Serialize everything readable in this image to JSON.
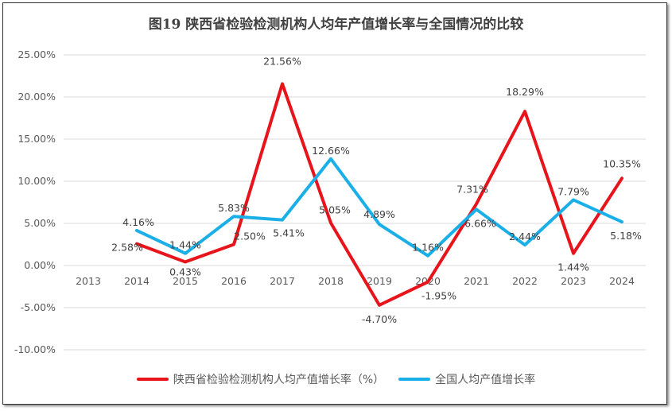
{
  "chart_data": {
    "type": "line",
    "title": "图19  陕西省检验检测机构人均年产值增长率与全国情况的比较",
    "categories": [
      "2013",
      "2014",
      "2015",
      "2016",
      "2017",
      "2018",
      "2019",
      "2020",
      "2021",
      "2022",
      "2023",
      "2024"
    ],
    "ylim": [
      -10,
      25
    ],
    "yticks": [
      "25.00%",
      "20.00%",
      "15.00%",
      "10.00%",
      "5.00%",
      "0.00%",
      "-5.00%",
      "-10.00%"
    ],
    "grid": true,
    "legend_position": "bottom",
    "series": [
      {
        "name": "陕西省检验检测机构人均产值增长率（%）",
        "color": "#E8141B",
        "values": [
          null,
          2.58,
          0.43,
          2.5,
          21.56,
          5.05,
          -4.7,
          -1.95,
          7.31,
          18.29,
          1.44,
          10.35
        ],
        "labels": [
          null,
          "2.58%",
          "0.43%",
          "2.50%",
          "21.56%",
          "5.05%",
          "-4.70%",
          "-1.95%",
          "7.31%",
          "18.29%",
          "1.44%",
          "10.35%"
        ]
      },
      {
        "name": "全国人均产值增长率",
        "color": "#1AAFE6",
        "values": [
          null,
          4.16,
          1.44,
          5.83,
          5.41,
          12.66,
          4.89,
          1.16,
          6.66,
          2.44,
          7.79,
          5.18
        ],
        "labels": [
          null,
          "4.16%",
          "1.44%",
          "5.83%",
          "5.41%",
          "12.66%",
          "4.89%",
          "1.16%",
          "6.66%",
          "2.44%",
          "7.79%",
          "5.18%"
        ]
      }
    ]
  }
}
